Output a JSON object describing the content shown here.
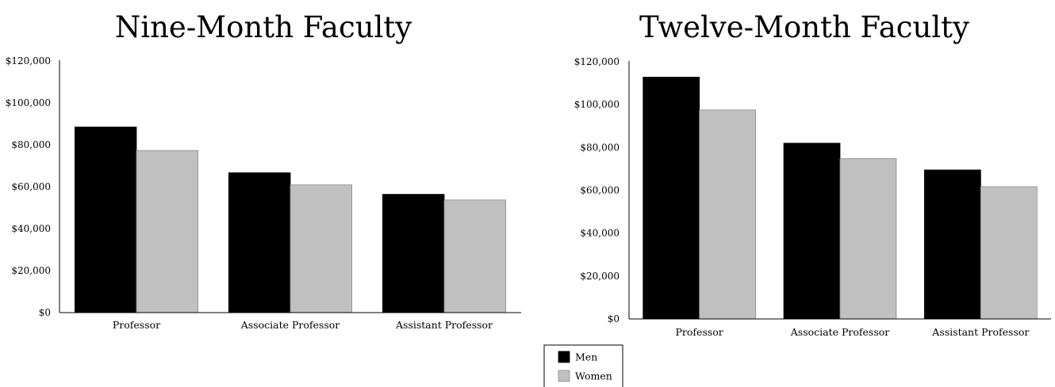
{
  "chart_data": [
    {
      "type": "bar",
      "title": "Nine-Month Faculty",
      "categories": [
        "Professor",
        "Associate Professor",
        "Assistant Professor"
      ],
      "series": [
        {
          "name": "Men",
          "values": [
            88500,
            66700,
            56400
          ]
        },
        {
          "name": "Women",
          "values": [
            77300,
            60900,
            53700
          ]
        }
      ],
      "ylim": [
        0,
        120000
      ],
      "yticks": [
        "$0",
        "$20,000",
        "$40,000",
        "$60,000",
        "$80,000",
        "$100,000",
        "$120,000"
      ],
      "grid": false
    },
    {
      "type": "bar",
      "title": "Twelve-Month Faculty",
      "categories": [
        "Professor",
        "Associate Professor",
        "Assistant Professor"
      ],
      "series": [
        {
          "name": "Men",
          "values": [
            112800,
            82000,
            69500
          ]
        },
        {
          "name": "Women",
          "values": [
            97500,
            74800,
            61700
          ]
        }
      ],
      "ylim": [
        0,
        120000
      ],
      "yticks": [
        "$0",
        "$20,000",
        "$40,000",
        "$60,000",
        "$80,000",
        "$100,000",
        "$120,000"
      ],
      "grid": false
    }
  ],
  "legend": {
    "placement": "bottom-center",
    "items": [
      {
        "label": "Men",
        "color": "#000000"
      },
      {
        "label": "Women",
        "color": "#c0c0c0"
      }
    ]
  },
  "colors": {
    "men": "#000000",
    "women": "#c0c0c0"
  }
}
